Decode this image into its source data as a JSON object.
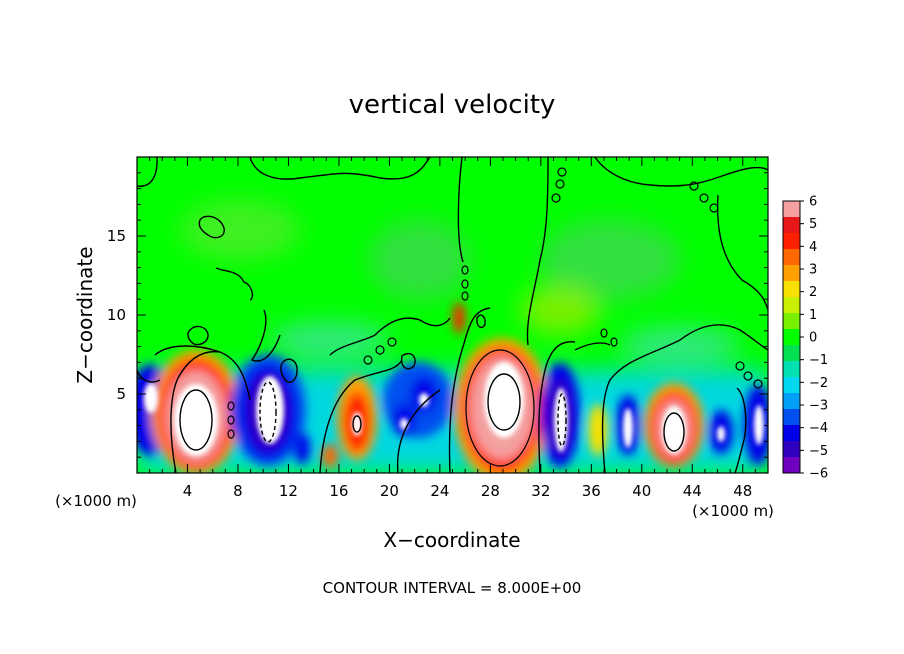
{
  "chart_data": {
    "type": "heatmap",
    "title": "vertical velocity",
    "xlabel": "X−coordinate",
    "ylabel": "Z−coordinate",
    "x_unit_left": "(×1000 m)",
    "x_unit_right": "(×1000 m)",
    "xlim": [
      0,
      50
    ],
    "ylim": [
      0,
      20
    ],
    "x_ticks": [
      4,
      8,
      12,
      16,
      20,
      24,
      28,
      32,
      36,
      40,
      44,
      48
    ],
    "y_ticks": [
      5,
      10,
      15
    ],
    "colorbar": {
      "min": -6,
      "max": 6,
      "labels": [
        "6",
        "5",
        "4",
        "3",
        "2",
        "1",
        "0",
        "−1",
        "−2",
        "−3",
        "−4",
        "−5",
        "−6"
      ],
      "colors": [
        "#f4a0a0",
        "#e81818",
        "#ff2000",
        "#ff6800",
        "#ffa000",
        "#f8e000",
        "#c8f000",
        "#78f000",
        "#00ff00",
        "#00e050",
        "#00e0b0",
        "#00d8f0",
        "#00a0f8",
        "#0050f0",
        "#0000e8",
        "#3000c0",
        "#7000c0"
      ]
    },
    "contour_interval_text": "CONTOUR INTERVAL = 8.000E+00",
    "cells": [
      {
        "x": 1,
        "z": 3.5,
        "w": -5
      },
      {
        "x": 5,
        "z": 3,
        "w": 6
      },
      {
        "x": 10,
        "z": 3.5,
        "w": -6
      },
      {
        "x": 13.5,
        "z": 2,
        "w": -4
      },
      {
        "x": 15.5,
        "z": 1.5,
        "w": 3
      },
      {
        "x": 17.5,
        "z": 3,
        "w": 5
      },
      {
        "x": 20,
        "z": 3.5,
        "w": -3
      },
      {
        "x": 22.5,
        "z": 4,
        "w": -5
      },
      {
        "x": 25.5,
        "z": 10,
        "w": 4
      },
      {
        "x": 29,
        "z": 4,
        "w": 6
      },
      {
        "x": 33.5,
        "z": 3,
        "w": -6
      },
      {
        "x": 36.5,
        "z": 3,
        "w": 2
      },
      {
        "x": 39,
        "z": 3,
        "w": -5
      },
      {
        "x": 42.5,
        "z": 3,
        "w": 6
      },
      {
        "x": 46,
        "z": 2.5,
        "w": -4
      },
      {
        "x": 49,
        "z": 3,
        "w": -4
      }
    ]
  }
}
